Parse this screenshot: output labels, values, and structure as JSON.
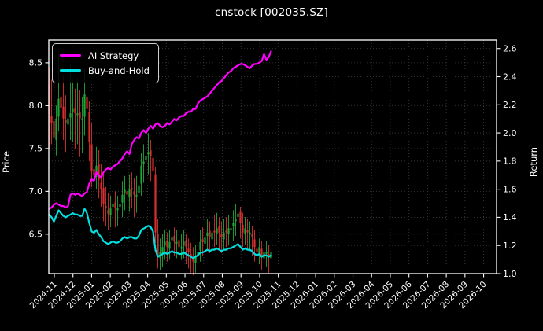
{
  "title": "cnstock [002035.SZ]",
  "colors": {
    "background": "#000000",
    "text": "#ffffff",
    "grid": "#3b3b3b",
    "spine": "#ffffff",
    "ai_line": "#ff00ff",
    "bh_line": "#00e0e0",
    "candle_up": "#1fa637",
    "candle_down": "#d62f2f"
  },
  "chart_data": {
    "type": "candlestick+line",
    "title": "cnstock [002035.SZ]",
    "grid": true,
    "legend_position": "upper left",
    "left_axis": {
      "label": "Price",
      "ticks": [
        6.5,
        7.0,
        7.5,
        8.0,
        8.5
      ],
      "range": [
        6.04,
        8.765
      ]
    },
    "right_axis": {
      "label": "Return",
      "ticks": [
        1.0,
        1.2,
        1.4,
        1.6,
        1.8,
        2.0,
        2.2,
        2.4,
        2.6
      ],
      "range": [
        1.0,
        2.66
      ]
    },
    "x_axis": {
      "tick_labels": [
        "2024-11",
        "2024-12",
        "2025-01",
        "2025-02",
        "2025-03",
        "2025-04",
        "2025-05",
        "2025-06",
        "2025-07",
        "2025-08",
        "2025-09",
        "2025-10",
        "2025-11",
        "2025-12",
        "2026-01",
        "2026-02",
        "2026-03",
        "2026-04",
        "2026-05",
        "2026-06",
        "2026-07",
        "2026-08",
        "2026-09",
        "2026-10"
      ],
      "label_rotation_deg": 45,
      "data_span": "2024-11 to 2025-11"
    },
    "legend": [
      {
        "label": "AI Strategy",
        "color": "#ff00ff"
      },
      {
        "label": "Buy-and-Hold",
        "color": "#00e0e0"
      }
    ],
    "candles_ohlc": [
      [
        8.25,
        8.45,
        7.5,
        7.91
      ],
      [
        7.88,
        8.3,
        7.55,
        7.8
      ],
      [
        7.82,
        8.1,
        7.28,
        7.63
      ],
      [
        7.6,
        8.0,
        7.42,
        7.85
      ],
      [
        7.87,
        8.62,
        7.7,
        8.08
      ],
      [
        8.1,
        8.73,
        7.75,
        7.97
      ],
      [
        7.99,
        8.35,
        7.6,
        7.85
      ],
      [
        7.83,
        8.12,
        7.46,
        7.8
      ],
      [
        7.78,
        8.25,
        7.52,
        7.85
      ],
      [
        7.86,
        8.48,
        7.6,
        7.91
      ],
      [
        7.93,
        8.3,
        7.58,
        7.96
      ],
      [
        7.98,
        8.2,
        7.5,
        7.91
      ],
      [
        7.89,
        8.32,
        7.55,
        7.91
      ],
      [
        7.92,
        8.18,
        7.4,
        7.85
      ],
      [
        7.83,
        8.1,
        7.45,
        7.85
      ],
      [
        7.87,
        8.42,
        7.65,
        8.13
      ],
      [
        8.1,
        8.25,
        7.7,
        7.96
      ],
      [
        7.93,
        8.05,
        7.35,
        7.58
      ],
      [
        7.55,
        7.8,
        7.05,
        7.24
      ],
      [
        7.26,
        7.55,
        6.95,
        7.19
      ],
      [
        7.17,
        7.52,
        7.02,
        7.3
      ],
      [
        7.32,
        7.48,
        6.92,
        7.13
      ],
      [
        7.1,
        7.32,
        6.82,
        7.02
      ],
      [
        7.04,
        7.2,
        6.65,
        6.85
      ],
      [
        6.83,
        7.05,
        6.6,
        6.8
      ],
      [
        6.78,
        6.98,
        6.55,
        6.74
      ],
      [
        6.72,
        6.95,
        6.58,
        6.8
      ],
      [
        6.82,
        7.02,
        6.62,
        6.85
      ],
      [
        6.87,
        7.0,
        6.58,
        6.8
      ],
      [
        6.78,
        6.95,
        6.6,
        6.8
      ],
      [
        6.82,
        7.05,
        6.65,
        6.85
      ],
      [
        6.87,
        7.12,
        6.7,
        6.96
      ],
      [
        6.98,
        7.18,
        6.78,
        7.02
      ],
      [
        7.0,
        7.15,
        6.72,
        6.96
      ],
      [
        6.94,
        7.2,
        6.76,
        7.02
      ],
      [
        7.04,
        7.22,
        6.8,
        7.02
      ],
      [
        7.0,
        7.15,
        6.7,
        6.96
      ],
      [
        6.94,
        7.18,
        6.75,
        6.96
      ],
      [
        6.98,
        7.25,
        6.82,
        7.07
      ],
      [
        7.09,
        7.45,
        6.95,
        7.3
      ],
      [
        7.32,
        7.55,
        7.1,
        7.35
      ],
      [
        7.37,
        7.62,
        7.15,
        7.41
      ],
      [
        7.43,
        7.68,
        7.2,
        7.46
      ],
      [
        7.48,
        7.6,
        7.12,
        7.41
      ],
      [
        7.39,
        7.55,
        6.98,
        7.24
      ],
      [
        7.2,
        7.28,
        6.4,
        6.52
      ],
      [
        6.5,
        6.68,
        6.1,
        6.24
      ],
      [
        6.22,
        6.45,
        6.08,
        6.29
      ],
      [
        6.27,
        6.5,
        6.12,
        6.35
      ],
      [
        6.37,
        6.55,
        6.2,
        6.41
      ],
      [
        6.43,
        6.52,
        6.18,
        6.35
      ],
      [
        6.33,
        6.55,
        6.2,
        6.41
      ],
      [
        6.43,
        6.62,
        6.28,
        6.46
      ],
      [
        6.48,
        6.58,
        6.25,
        6.41
      ],
      [
        6.39,
        6.55,
        6.22,
        6.41
      ],
      [
        6.43,
        6.52,
        6.18,
        6.35
      ],
      [
        6.33,
        6.5,
        6.2,
        6.35
      ],
      [
        6.37,
        6.55,
        6.22,
        6.41
      ],
      [
        6.43,
        6.5,
        6.15,
        6.35
      ],
      [
        6.33,
        6.45,
        6.1,
        6.29
      ],
      [
        6.27,
        6.4,
        6.05,
        6.24
      ],
      [
        6.22,
        6.35,
        6.02,
        6.18
      ],
      [
        6.16,
        6.38,
        6.05,
        6.24
      ],
      [
        6.26,
        6.45,
        6.12,
        6.29
      ],
      [
        6.31,
        6.55,
        6.18,
        6.41
      ],
      [
        6.44,
        6.58,
        6.25,
        6.41
      ],
      [
        6.39,
        6.6,
        6.28,
        6.46
      ],
      [
        6.48,
        6.68,
        6.32,
        6.52
      ],
      [
        6.54,
        6.65,
        6.28,
        6.46
      ],
      [
        6.44,
        6.68,
        6.32,
        6.52
      ],
      [
        6.54,
        6.72,
        6.35,
        6.52
      ],
      [
        6.5,
        6.75,
        6.38,
        6.57
      ],
      [
        6.59,
        6.7,
        6.32,
        6.52
      ],
      [
        6.5,
        6.65,
        6.28,
        6.46
      ],
      [
        6.44,
        6.68,
        6.32,
        6.52
      ],
      [
        6.54,
        6.7,
        6.35,
        6.52
      ],
      [
        6.5,
        6.72,
        6.38,
        6.57
      ],
      [
        6.55,
        6.7,
        6.35,
        6.57
      ],
      [
        6.59,
        6.78,
        6.42,
        6.63
      ],
      [
        6.65,
        6.85,
        6.48,
        6.68
      ],
      [
        6.7,
        6.88,
        6.52,
        6.74
      ],
      [
        6.76,
        6.82,
        6.45,
        6.63
      ],
      [
        6.61,
        6.75,
        6.35,
        6.52
      ],
      [
        6.5,
        6.7,
        6.38,
        6.57
      ],
      [
        6.55,
        6.68,
        6.32,
        6.52
      ],
      [
        6.5,
        6.65,
        6.3,
        6.52
      ],
      [
        6.5,
        6.6,
        6.25,
        6.46
      ],
      [
        6.44,
        6.55,
        6.18,
        6.35
      ],
      [
        6.33,
        6.48,
        6.12,
        6.29
      ],
      [
        6.27,
        6.45,
        6.15,
        6.35
      ],
      [
        6.33,
        6.42,
        6.08,
        6.24
      ],
      [
        6.22,
        6.4,
        6.1,
        6.29
      ],
      [
        6.27,
        6.42,
        6.12,
        6.29
      ],
      [
        6.27,
        6.38,
        6.05,
        6.24
      ],
      [
        6.22,
        6.45,
        6.1,
        6.29
      ]
    ],
    "series": [
      {
        "name": "AI Strategy",
        "axis": "return",
        "color": "#ff00ff",
        "values": [
          1.46,
          1.47,
          1.49,
          1.5,
          1.49,
          1.48,
          1.48,
          1.47,
          1.48,
          1.56,
          1.57,
          1.56,
          1.57,
          1.56,
          1.55,
          1.57,
          1.58,
          1.64,
          1.67,
          1.66,
          1.72,
          1.7,
          1.68,
          1.72,
          1.74,
          1.75,
          1.74,
          1.76,
          1.77,
          1.78,
          1.8,
          1.82,
          1.85,
          1.87,
          1.85,
          1.92,
          1.95,
          1.97,
          1.96,
          2.0,
          2.02,
          2.0,
          2.03,
          2.05,
          2.03,
          2.06,
          2.07,
          2.05,
          2.04,
          2.05,
          2.07,
          2.06,
          2.08,
          2.1,
          2.09,
          2.11,
          2.12,
          2.12,
          2.14,
          2.15,
          2.15,
          2.17,
          2.17,
          2.21,
          2.23,
          2.24,
          2.25,
          2.26,
          2.28,
          2.3,
          2.32,
          2.34,
          2.36,
          2.37,
          2.39,
          2.41,
          2.43,
          2.44,
          2.46,
          2.47,
          2.48,
          2.49,
          2.49,
          2.48,
          2.47,
          2.46,
          2.48,
          2.49,
          2.49,
          2.5,
          2.51,
          2.56,
          2.52,
          2.54,
          2.58
        ]
      },
      {
        "name": "Buy-and-Hold",
        "axis": "return",
        "color": "#00e0e0",
        "values": [
          1.42,
          1.4,
          1.37,
          1.41,
          1.45,
          1.43,
          1.41,
          1.4,
          1.41,
          1.42,
          1.43,
          1.42,
          1.42,
          1.41,
          1.41,
          1.46,
          1.43,
          1.36,
          1.3,
          1.29,
          1.31,
          1.28,
          1.26,
          1.23,
          1.22,
          1.21,
          1.22,
          1.23,
          1.22,
          1.22,
          1.23,
          1.25,
          1.26,
          1.25,
          1.26,
          1.26,
          1.25,
          1.25,
          1.27,
          1.31,
          1.32,
          1.33,
          1.34,
          1.33,
          1.3,
          1.17,
          1.12,
          1.13,
          1.14,
          1.15,
          1.14,
          1.15,
          1.16,
          1.15,
          1.15,
          1.14,
          1.14,
          1.15,
          1.14,
          1.13,
          1.12,
          1.11,
          1.12,
          1.13,
          1.15,
          1.15,
          1.16,
          1.17,
          1.16,
          1.17,
          1.17,
          1.18,
          1.17,
          1.16,
          1.17,
          1.17,
          1.18,
          1.18,
          1.19,
          1.2,
          1.21,
          1.19,
          1.17,
          1.18,
          1.17,
          1.17,
          1.16,
          1.14,
          1.13,
          1.14,
          1.12,
          1.13,
          1.13,
          1.12,
          1.13
        ]
      }
    ]
  }
}
